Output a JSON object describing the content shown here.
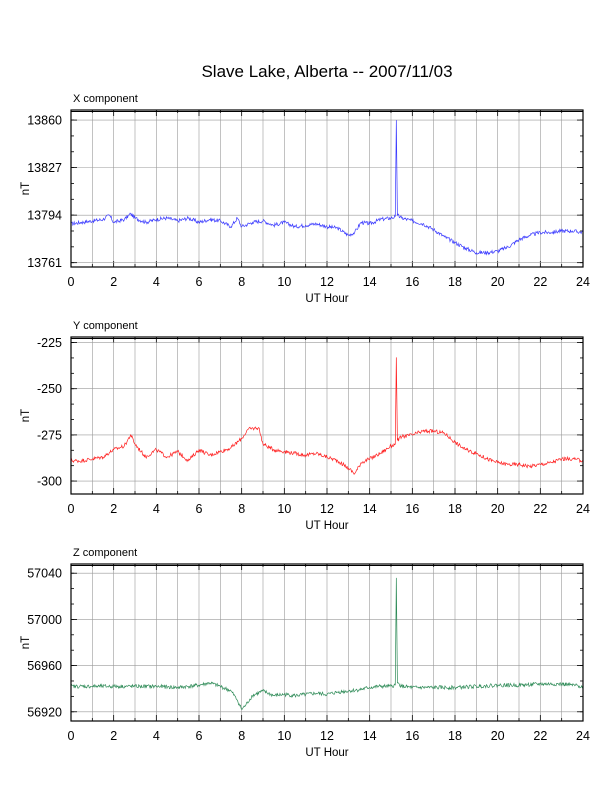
{
  "title": "Slave Lake, Alberta -- 2007/11/03",
  "chart_data": [
    {
      "type": "line",
      "name": "X component",
      "xlabel": "UT Hour",
      "ylabel": "nT",
      "xlim": [
        0,
        24
      ],
      "ylim": [
        13758,
        13867
      ],
      "xticks": [
        0,
        2,
        4,
        6,
        8,
        10,
        12,
        14,
        16,
        18,
        20,
        22,
        24
      ],
      "yticks": [
        13761,
        13794,
        13827,
        13860
      ],
      "grid": true,
      "color": "#3a3aff",
      "trace": [
        [
          0,
          13788
        ],
        [
          0.5,
          13789
        ],
        [
          1,
          13790
        ],
        [
          1.5,
          13791
        ],
        [
          1.8,
          13794
        ],
        [
          2,
          13789
        ],
        [
          2.5,
          13791
        ],
        [
          2.8,
          13795
        ],
        [
          3,
          13792
        ],
        [
          3.5,
          13789
        ],
        [
          4,
          13791
        ],
        [
          4.5,
          13792
        ],
        [
          5,
          13790
        ],
        [
          5.5,
          13792
        ],
        [
          6,
          13789
        ],
        [
          6.5,
          13791
        ],
        [
          7,
          13790
        ],
        [
          7.5,
          13786
        ],
        [
          7.8,
          13792
        ],
        [
          8,
          13786
        ],
        [
          8.5,
          13789
        ],
        [
          9,
          13790
        ],
        [
          9.5,
          13787
        ],
        [
          10,
          13789
        ],
        [
          10.5,
          13786
        ],
        [
          11,
          13787
        ],
        [
          11.5,
          13788
        ],
        [
          12,
          13786
        ],
        [
          12.5,
          13785
        ],
        [
          13,
          13780
        ],
        [
          13.3,
          13782
        ],
        [
          13.6,
          13789
        ],
        [
          14,
          13788
        ],
        [
          14.5,
          13791
        ],
        [
          15,
          13792
        ],
        [
          15.2,
          13793
        ],
        [
          15.25,
          13860
        ],
        [
          15.3,
          13794
        ],
        [
          15.5,
          13792
        ],
        [
          16,
          13790
        ],
        [
          16.5,
          13788
        ],
        [
          17,
          13784
        ],
        [
          17.5,
          13779
        ],
        [
          18,
          13775
        ],
        [
          18.5,
          13771
        ],
        [
          19,
          13768
        ],
        [
          19.5,
          13768
        ],
        [
          20,
          13769
        ],
        [
          20.5,
          13772
        ],
        [
          21,
          13777
        ],
        [
          21.5,
          13780
        ],
        [
          22,
          13782
        ],
        [
          22.5,
          13782
        ],
        [
          23,
          13783
        ],
        [
          23.5,
          13783
        ],
        [
          24,
          13782
        ]
      ]
    },
    {
      "type": "line",
      "name": "Y component",
      "xlabel": "UT Hour",
      "ylabel": "nT",
      "xlim": [
        0,
        24
      ],
      "ylim": [
        -307,
        -222
      ],
      "xticks": [
        0,
        2,
        4,
        6,
        8,
        10,
        12,
        14,
        16,
        18,
        20,
        22,
        24
      ],
      "yticks": [
        -300,
        -275,
        -250,
        -225
      ],
      "grid": true,
      "color": "#ff2020",
      "trace": [
        [
          0,
          -289
        ],
        [
          0.5,
          -289
        ],
        [
          1,
          -288
        ],
        [
          1.5,
          -287
        ],
        [
          2,
          -283
        ],
        [
          2.5,
          -281
        ],
        [
          2.8,
          -275
        ],
        [
          3,
          -280
        ],
        [
          3.5,
          -287
        ],
        [
          4,
          -283
        ],
        [
          4.5,
          -287
        ],
        [
          5,
          -284
        ],
        [
          5.5,
          -289
        ],
        [
          6,
          -283
        ],
        [
          6.5,
          -286
        ],
        [
          7,
          -284
        ],
        [
          7.5,
          -282
        ],
        [
          8,
          -277
        ],
        [
          8.3,
          -272
        ],
        [
          8.8,
          -271
        ],
        [
          9,
          -280
        ],
        [
          9.5,
          -283
        ],
        [
          10,
          -284
        ],
        [
          10.5,
          -285
        ],
        [
          11,
          -286
        ],
        [
          11.5,
          -285
        ],
        [
          12,
          -287
        ],
        [
          12.5,
          -289
        ],
        [
          13,
          -293
        ],
        [
          13.3,
          -296
        ],
        [
          13.6,
          -290
        ],
        [
          14,
          -288
        ],
        [
          14.5,
          -285
        ],
        [
          15,
          -281
        ],
        [
          15.2,
          -280
        ],
        [
          15.25,
          -233
        ],
        [
          15.3,
          -278
        ],
        [
          15.5,
          -276
        ],
        [
          16,
          -275
        ],
        [
          16.5,
          -273
        ],
        [
          17,
          -273
        ],
        [
          17.5,
          -274
        ],
        [
          18,
          -279
        ],
        [
          18.5,
          -283
        ],
        [
          19,
          -285
        ],
        [
          19.5,
          -288
        ],
        [
          20,
          -290
        ],
        [
          20.5,
          -291
        ],
        [
          21,
          -291
        ],
        [
          21.5,
          -292
        ],
        [
          22,
          -291
        ],
        [
          22.5,
          -290
        ],
        [
          23,
          -288
        ],
        [
          23.5,
          -288
        ],
        [
          24,
          -289
        ]
      ]
    },
    {
      "type": "line",
      "name": "Z component",
      "xlabel": "UT Hour",
      "ylabel": "nT",
      "xlim": [
        0,
        24
      ],
      "ylim": [
        56912,
        57048
      ],
      "xticks": [
        0,
        2,
        4,
        6,
        8,
        10,
        12,
        14,
        16,
        18,
        20,
        22,
        24
      ],
      "yticks": [
        56920,
        56960,
        57000,
        57040
      ],
      "grid": true,
      "color": "#2e8b57",
      "trace": [
        [
          0,
          56942
        ],
        [
          1,
          56942
        ],
        [
          2,
          56942
        ],
        [
          3,
          56942
        ],
        [
          4,
          56942
        ],
        [
          5,
          56941
        ],
        [
          6,
          56943
        ],
        [
          6.5,
          56945
        ],
        [
          7,
          56942
        ],
        [
          7.5,
          56938
        ],
        [
          7.8,
          56930
        ],
        [
          8,
          56922
        ],
        [
          8.2,
          56926
        ],
        [
          8.5,
          56934
        ],
        [
          9,
          56938
        ],
        [
          9.5,
          56934
        ],
        [
          10,
          56935
        ],
        [
          10.5,
          56934
        ],
        [
          11,
          56935
        ],
        [
          11.5,
          56936
        ],
        [
          12,
          56935
        ],
        [
          12.5,
          56937
        ],
        [
          13,
          56938
        ],
        [
          13.5,
          56939
        ],
        [
          14,
          56941
        ],
        [
          14.5,
          56942
        ],
        [
          15,
          56942
        ],
        [
          15.2,
          56943
        ],
        [
          15.25,
          57036
        ],
        [
          15.3,
          56945
        ],
        [
          15.5,
          56942
        ],
        [
          16,
          56941
        ],
        [
          17,
          56941
        ],
        [
          18,
          56941
        ],
        [
          19,
          56942
        ],
        [
          20,
          56943
        ],
        [
          21,
          56943
        ],
        [
          22,
          56944
        ],
        [
          23,
          56944
        ],
        [
          24,
          56942
        ]
      ]
    }
  ]
}
